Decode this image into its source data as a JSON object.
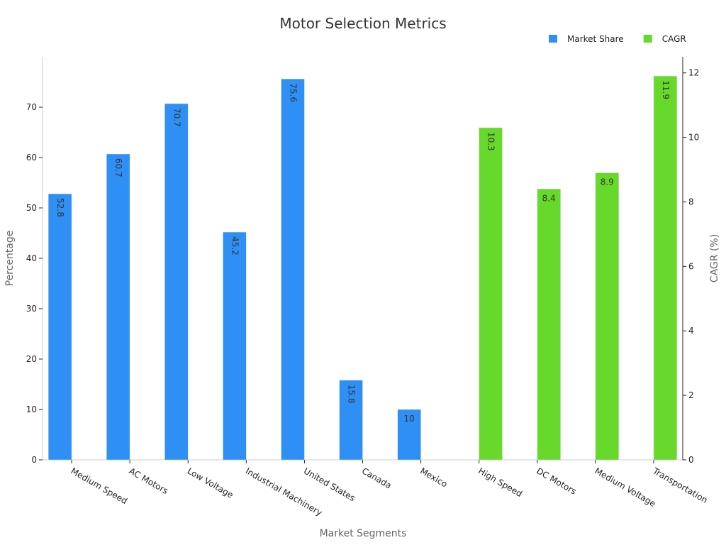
{
  "chart_data": {
    "type": "bar",
    "title": "Motor Selection Metrics",
    "xlabel": "Market Segments",
    "ylabel": "Percentage",
    "y2label": "CAGR (%)",
    "ylim": [
      0,
      80
    ],
    "y2lim": [
      0,
      12.5
    ],
    "yticks": [
      0,
      10,
      20,
      30,
      40,
      50,
      60,
      70
    ],
    "y2ticks": [
      0,
      2,
      4,
      6,
      8,
      10,
      12
    ],
    "legend_position": "top-right",
    "categories": [
      "Medium Speed",
      "AC Motors",
      "Low Voltage",
      "Industrial Machinery",
      "United States",
      "Canada",
      "Mexico",
      "High Speed",
      "DC Motors",
      "Medium Voltage",
      "Transportation"
    ],
    "series": [
      {
        "name": "Market Share",
        "axis": "left",
        "color": "#2e8ff5",
        "values": [
          52.8,
          60.7,
          70.7,
          45.2,
          75.6,
          15.8,
          10,
          null,
          null,
          null,
          null
        ]
      },
      {
        "name": "CAGR",
        "axis": "right",
        "color": "#66d92a",
        "values": [
          null,
          null,
          null,
          null,
          null,
          null,
          null,
          10.3,
          8.4,
          8.9,
          11.9
        ]
      }
    ]
  }
}
